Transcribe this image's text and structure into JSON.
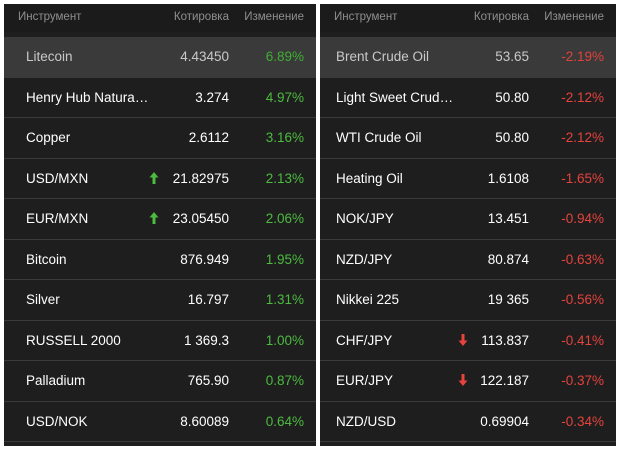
{
  "left": {
    "header": {
      "name": "Инструмент",
      "price": "Котировка",
      "change": "Изменение"
    },
    "rows": [
      {
        "name": "Litecoin",
        "price": "4.43450",
        "change": "6.89%",
        "dir": "up",
        "arrow": "",
        "highlight": true
      },
      {
        "name": "Henry Hub Natural Gas",
        "price": "3.274",
        "change": "4.97%",
        "dir": "up",
        "arrow": "",
        "highlight": false
      },
      {
        "name": "Copper",
        "price": "2.6112",
        "change": "3.16%",
        "dir": "up",
        "arrow": "",
        "highlight": false
      },
      {
        "name": "USD/MXN",
        "price": "21.82975",
        "change": "2.13%",
        "dir": "up",
        "arrow": "arrow-up-icon",
        "highlight": false
      },
      {
        "name": "EUR/MXN",
        "price": "23.05450",
        "change": "2.06%",
        "dir": "up",
        "arrow": "arrow-up-icon",
        "highlight": false
      },
      {
        "name": "Bitcoin",
        "price": "876.949",
        "change": "1.95%",
        "dir": "up",
        "arrow": "",
        "highlight": false
      },
      {
        "name": "Silver",
        "price": "16.797",
        "change": "1.31%",
        "dir": "up",
        "arrow": "",
        "highlight": false
      },
      {
        "name": "RUSSELL 2000",
        "price": "1 369.3",
        "change": "1.00%",
        "dir": "up",
        "arrow": "",
        "highlight": false
      },
      {
        "name": "Palladium",
        "price": "765.90",
        "change": "0.87%",
        "dir": "up",
        "arrow": "",
        "highlight": false
      },
      {
        "name": "USD/NOK",
        "price": "8.60089",
        "change": "0.64%",
        "dir": "up",
        "arrow": "",
        "highlight": false
      }
    ]
  },
  "right": {
    "header": {
      "name": "Инструмент",
      "price": "Котировка",
      "change": "Изменение"
    },
    "rows": [
      {
        "name": "Brent Crude Oil",
        "price": "53.65",
        "change": "-2.19%",
        "dir": "down",
        "arrow": "",
        "highlight": true
      },
      {
        "name": "Light Sweet Crude Oil",
        "price": "50.80",
        "change": "-2.12%",
        "dir": "down",
        "arrow": "",
        "highlight": false
      },
      {
        "name": "WTI Crude Oil",
        "price": "50.80",
        "change": "-2.12%",
        "dir": "down",
        "arrow": "",
        "highlight": false
      },
      {
        "name": "Heating Oil",
        "price": "1.6108",
        "change": "-1.65%",
        "dir": "down",
        "arrow": "",
        "highlight": false
      },
      {
        "name": "NOK/JPY",
        "price": "13.451",
        "change": "-0.94%",
        "dir": "down",
        "arrow": "",
        "highlight": false
      },
      {
        "name": "NZD/JPY",
        "price": "80.874",
        "change": "-0.63%",
        "dir": "down",
        "arrow": "",
        "highlight": false
      },
      {
        "name": "Nikkei 225",
        "price": "19 365",
        "change": "-0.56%",
        "dir": "down",
        "arrow": "",
        "highlight": false
      },
      {
        "name": "CHF/JPY",
        "price": "113.837",
        "change": "-0.41%",
        "dir": "down",
        "arrow": "arrow-down-icon",
        "highlight": false
      },
      {
        "name": "EUR/JPY",
        "price": "122.187",
        "change": "-0.37%",
        "dir": "down",
        "arrow": "arrow-down-icon",
        "highlight": false
      },
      {
        "name": "NZD/USD",
        "price": "0.69904",
        "change": "-0.34%",
        "dir": "down",
        "arrow": "",
        "highlight": false
      }
    ]
  },
  "colors": {
    "up": "#4cbb3f",
    "down": "#e5433c",
    "panel": "#1e1e1e",
    "highlight": "#3a3a3a"
  }
}
